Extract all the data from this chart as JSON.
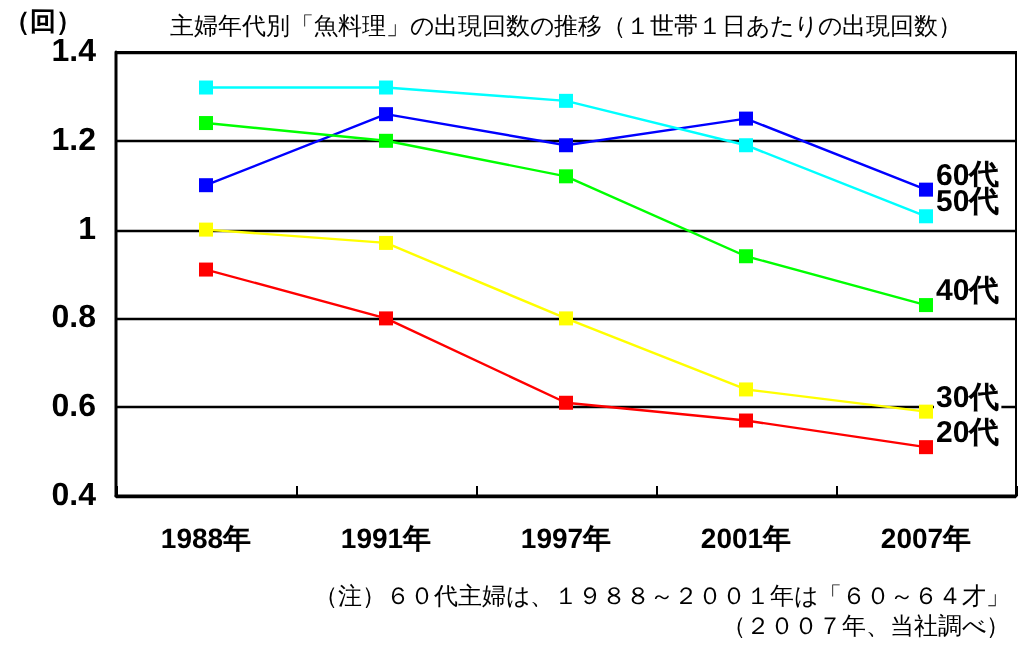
{
  "chart_data": {
    "type": "line",
    "title": "主婦年代別「魚料理」の出現回数の推移（１世帯１日あたりの出現回数）",
    "ylabel": "（回）",
    "categories": [
      "1988年",
      "1991年",
      "1997年",
      "2001年",
      "2007年"
    ],
    "series": [
      {
        "name": "60代",
        "color": "#0000ff",
        "values": [
          1.1,
          1.26,
          1.19,
          1.25,
          1.09
        ]
      },
      {
        "name": "50代",
        "color": "#00ffff",
        "values": [
          1.32,
          1.32,
          1.29,
          1.19,
          1.03
        ]
      },
      {
        "name": "40代",
        "color": "#00ff00",
        "values": [
          1.24,
          1.2,
          1.12,
          0.94,
          0.83
        ]
      },
      {
        "name": "30代",
        "color": "#ffff00",
        "values": [
          1.0,
          0.97,
          0.8,
          0.64,
          0.59
        ]
      },
      {
        "name": "20代",
        "color": "#ff0000",
        "values": [
          0.91,
          0.8,
          0.61,
          0.57,
          0.51
        ]
      }
    ],
    "ylim": [
      0.4,
      1.4
    ],
    "yticks": [
      0.4,
      0.6,
      0.8,
      1,
      1.2,
      1.4
    ],
    "grid": "y",
    "marker": "square",
    "line_style": "solid",
    "annotations": [
      "（注）６０代主婦は、１９８８～２００１年は「６０～６４才」",
      "（２００７年、当社調べ）"
    ]
  }
}
